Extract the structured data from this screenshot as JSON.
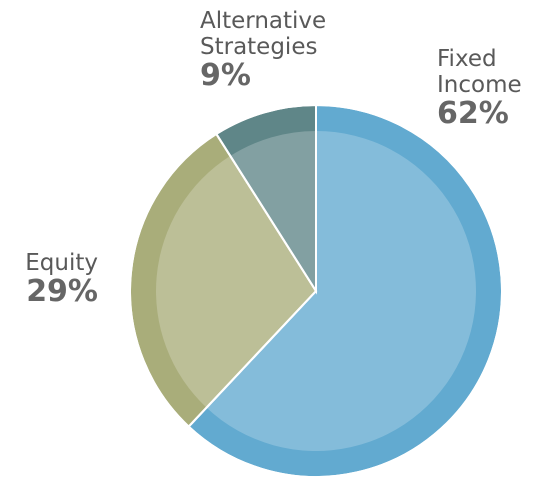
{
  "chart_data": {
    "type": "pie",
    "categories": [
      "Fixed Income",
      "Equity",
      "Alternative Strategies"
    ],
    "values": [
      62,
      29,
      9
    ],
    "value_labels": [
      "62%",
      "29%",
      "9%"
    ],
    "colors": [
      "#62aad0",
      "#a9ad7a",
      "#5f8688"
    ]
  }
}
